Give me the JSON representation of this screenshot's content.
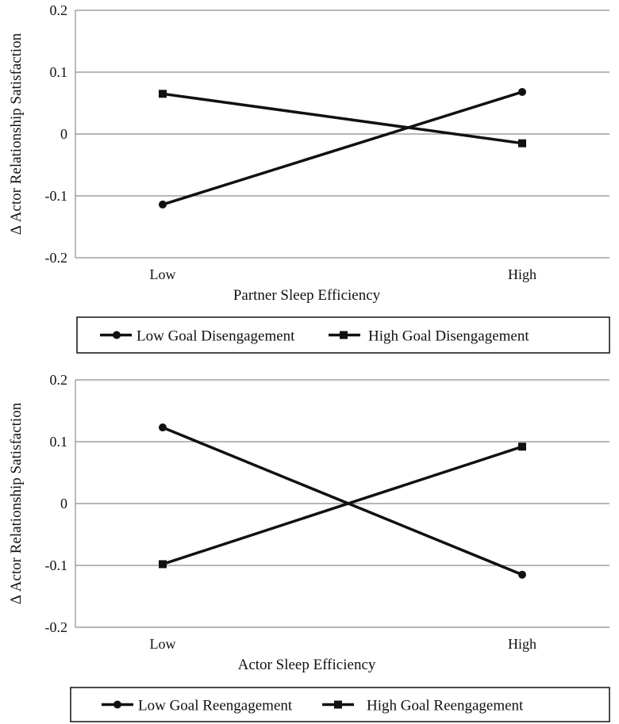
{
  "chart_data": [
    {
      "type": "line",
      "title": "",
      "xlabel": "Partner Sleep Efficiency",
      "ylabel": "Δ Actor Relationship  Satisfaction",
      "categories": [
        "Low",
        "High"
      ],
      "ylim": [
        -0.2,
        0.2
      ],
      "yticks": [
        0.2,
        0.1,
        0,
        -0.1,
        -0.2
      ],
      "ytick_labels": [
        "0.2",
        "0.1",
        "0",
        "-0.1",
        "-0.2"
      ],
      "grid": true,
      "legend_position": "bottom",
      "series": [
        {
          "name": "Low Goal Disengagement",
          "marker": "circle",
          "values": [
            -0.114,
            0.068
          ]
        },
        {
          "name": "High Goal Disengagement",
          "marker": "square",
          "values": [
            0.065,
            -0.015
          ]
        }
      ]
    },
    {
      "type": "line",
      "title": "",
      "xlabel": "Actor Sleep Efficiency",
      "ylabel": "Δ Actor Relationship  Satisfaction",
      "categories": [
        "Low",
        "High"
      ],
      "ylim": [
        -0.2,
        0.2
      ],
      "yticks": [
        0.2,
        0.1,
        0,
        -0.1,
        -0.2
      ],
      "ytick_labels": [
        "0.2",
        "0.1",
        "0",
        "-0.1",
        "-0.2"
      ],
      "grid": true,
      "legend_position": "bottom",
      "series": [
        {
          "name": "Low Goal Reengagement",
          "marker": "circle",
          "values": [
            0.123,
            -0.115
          ]
        },
        {
          "name": "High Goal Reengagement",
          "marker": "square",
          "values": [
            -0.098,
            0.092
          ]
        }
      ]
    }
  ],
  "colors": {
    "line": "#111111",
    "grid": "#8c8c8c",
    "axis": "#8c8c8c",
    "text": "#111111"
  }
}
